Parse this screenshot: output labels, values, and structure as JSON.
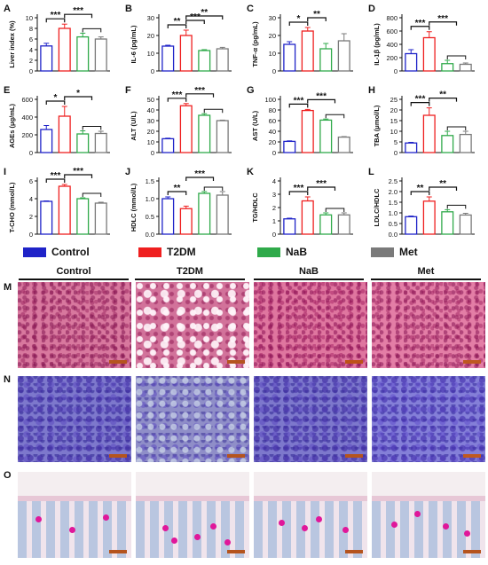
{
  "legend": {
    "items": [
      {
        "label": "Control",
        "color": "#1f23c8"
      },
      {
        "label": "T2DM",
        "color": "#ef1f1f"
      },
      {
        "label": "NaB",
        "color": "#2faa4a"
      },
      {
        "label": "Met",
        "color": "#7a7a7a"
      }
    ]
  },
  "colors": {
    "control": "#1f23c8",
    "t2dm": "#ef1f1f",
    "nab": "#2faa4a",
    "met": "#7a7a7a",
    "bar_fill": "#ffffff"
  },
  "chart_data": [
    {
      "panel": "A",
      "type": "bar",
      "ylabel": "Liver index (%)",
      "ylim": [
        0,
        10
      ],
      "yticks": [
        0,
        2,
        4,
        6,
        8,
        10
      ],
      "categories": [
        "Control",
        "T2DM",
        "NaB",
        "Met"
      ],
      "values": [
        4.7,
        8.0,
        6.4,
        6.0
      ],
      "errors": [
        0.5,
        0.8,
        0.7,
        0.4
      ],
      "significance": [
        {
          "from": 0,
          "to": 1,
          "label": "***"
        },
        {
          "from": 1,
          "to": [
            2,
            3
          ],
          "label": "***"
        }
      ]
    },
    {
      "panel": "B",
      "type": "bar",
      "ylabel": "IL-6 (pg/mL)",
      "ylim": [
        0,
        30
      ],
      "yticks": [
        0,
        10,
        20,
        30
      ],
      "categories": [
        "Control",
        "T2DM",
        "NaB",
        "Met"
      ],
      "values": [
        14,
        20,
        11.5,
        12.5
      ],
      "errors": [
        0.5,
        3,
        0.5,
        0.8
      ],
      "significance": [
        {
          "from": 0,
          "to": 1,
          "label": "**"
        },
        {
          "from": 1,
          "to": 2,
          "label": "***"
        },
        {
          "from": 1,
          "to": 3,
          "label": "**"
        }
      ]
    },
    {
      "panel": "C",
      "type": "bar",
      "ylabel": "TNF-α (pg/mL)",
      "ylim": [
        0,
        30
      ],
      "yticks": [
        0,
        10,
        20,
        30
      ],
      "categories": [
        "Control",
        "T2DM",
        "NaB",
        "Met"
      ],
      "values": [
        15,
        22.5,
        12.5,
        17
      ],
      "errors": [
        1.5,
        2,
        3,
        4
      ],
      "significance": [
        {
          "from": 0,
          "to": 1,
          "label": "*"
        },
        {
          "from": 1,
          "to": 2,
          "label": "**"
        }
      ]
    },
    {
      "panel": "D",
      "type": "bar",
      "ylabel": "IL-1β (pg/mL)",
      "ylim": [
        0,
        800
      ],
      "yticks": [
        0,
        200,
        400,
        600,
        800
      ],
      "categories": [
        "Control",
        "T2DM",
        "NaB",
        "Met"
      ],
      "values": [
        260,
        500,
        110,
        100
      ],
      "errors": [
        60,
        90,
        50,
        20
      ],
      "significance": [
        {
          "from": 0,
          "to": 1,
          "label": "***"
        },
        {
          "from": 1,
          "to": [
            2,
            3
          ],
          "label": "***"
        }
      ]
    },
    {
      "panel": "E",
      "type": "bar",
      "ylabel": "AGEs (μg/mL)",
      "ylim": [
        0,
        600
      ],
      "yticks": [
        0,
        200,
        400,
        600
      ],
      "categories": [
        "Control",
        "T2DM",
        "NaB",
        "Met"
      ],
      "values": [
        260,
        410,
        210,
        215
      ],
      "errors": [
        45,
        110,
        35,
        25
      ],
      "significance": [
        {
          "from": 0,
          "to": 1,
          "label": "*"
        },
        {
          "from": 1,
          "to": [
            2,
            3
          ],
          "label": "*"
        }
      ]
    },
    {
      "panel": "F",
      "type": "bar",
      "ylabel": "ALT (U/L)",
      "ylim": [
        0,
        50
      ],
      "yticks": [
        0,
        10,
        20,
        30,
        40,
        50
      ],
      "categories": [
        "Control",
        "T2DM",
        "NaB",
        "Met"
      ],
      "values": [
        13,
        44,
        35,
        30
      ],
      "errors": [
        0.5,
        2,
        1.5,
        0.5
      ],
      "significance": [
        {
          "from": 0,
          "to": 1,
          "label": "***"
        },
        {
          "from": 1,
          "to": [
            2,
            3
          ],
          "label": "***"
        }
      ]
    },
    {
      "panel": "G",
      "type": "bar",
      "ylabel": "AST (U/L)",
      "ylim": [
        0,
        100
      ],
      "yticks": [
        0,
        20,
        40,
        60,
        80,
        100
      ],
      "categories": [
        "Control",
        "T2DM",
        "NaB",
        "Met"
      ],
      "values": [
        21,
        79,
        61,
        29
      ],
      "errors": [
        1,
        2,
        2,
        1
      ],
      "significance": [
        {
          "from": 0,
          "to": 1,
          "label": "***"
        },
        {
          "from": 1,
          "to": [
            2,
            3
          ],
          "label": "***"
        }
      ]
    },
    {
      "panel": "H",
      "type": "bar",
      "ylabel": "TBA (μmol/L)",
      "ylim": [
        0,
        25
      ],
      "yticks": [
        0,
        5,
        10,
        15,
        20,
        25
      ],
      "categories": [
        "Control",
        "T2DM",
        "NaB",
        "Met"
      ],
      "values": [
        4.5,
        17.5,
        8,
        8.5
      ],
      "errors": [
        0.3,
        3.5,
        2,
        1.5
      ],
      "significance": [
        {
          "from": 0,
          "to": 1,
          "label": "***"
        },
        {
          "from": 1,
          "to": [
            2,
            3
          ],
          "label": "**"
        }
      ]
    },
    {
      "panel": "I",
      "type": "bar",
      "ylabel": "T-CHO (mmol/L)",
      "ylim": [
        0,
        6
      ],
      "yticks": [
        0,
        2,
        4,
        6
      ],
      "categories": [
        "Control",
        "T2DM",
        "NaB",
        "Met"
      ],
      "values": [
        3.7,
        5.4,
        4.0,
        3.5
      ],
      "errors": [
        0.05,
        0.2,
        0.1,
        0.1
      ],
      "significance": [
        {
          "from": 0,
          "to": 1,
          "label": "***"
        },
        {
          "from": 1,
          "to": [
            2,
            3
          ],
          "label": "***"
        }
      ]
    },
    {
      "panel": "J",
      "type": "bar",
      "ylabel": "HDLC (mmol/L)",
      "ylim": [
        0,
        1.5
      ],
      "yticks": [
        0.0,
        0.5,
        1.0,
        1.5
      ],
      "categories": [
        "Control",
        "T2DM",
        "NaB",
        "Met"
      ],
      "values": [
        1.0,
        0.72,
        1.15,
        1.1
      ],
      "errors": [
        0.05,
        0.07,
        0.05,
        0.1
      ],
      "significance": [
        {
          "from": 0,
          "to": 1,
          "label": "**"
        },
        {
          "from": 1,
          "to": [
            2,
            3
          ],
          "label": "***"
        }
      ]
    },
    {
      "panel": "K",
      "type": "bar",
      "ylabel": "TG/HDLC",
      "ylim": [
        0,
        4
      ],
      "yticks": [
        0,
        1,
        2,
        3,
        4
      ],
      "categories": [
        "Control",
        "T2DM",
        "NaB",
        "Met"
      ],
      "values": [
        1.15,
        2.5,
        1.45,
        1.45
      ],
      "errors": [
        0.05,
        0.3,
        0.15,
        0.15
      ],
      "significance": [
        {
          "from": 0,
          "to": 1,
          "label": "***"
        },
        {
          "from": 1,
          "to": [
            2,
            3
          ],
          "label": "***"
        }
      ]
    },
    {
      "panel": "L",
      "type": "bar",
      "ylabel": "LDLC/HDLC",
      "ylim": [
        0,
        2.5
      ],
      "yticks": [
        0.0,
        0.5,
        1.0,
        1.5,
        2.0,
        2.5
      ],
      "categories": [
        "Control",
        "T2DM",
        "NaB",
        "Met"
      ],
      "values": [
        0.82,
        1.55,
        1.05,
        0.9
      ],
      "errors": [
        0.03,
        0.2,
        0.1,
        0.08
      ],
      "significance": [
        {
          "from": 0,
          "to": 1,
          "label": "**"
        },
        {
          "from": 1,
          "to": [
            2,
            3
          ],
          "label": "**"
        }
      ]
    }
  ],
  "micrographs": {
    "columns": [
      "Control",
      "T2DM",
      "NaB",
      "Met"
    ],
    "rows": [
      {
        "letter": "M",
        "stain": "he"
      },
      {
        "letter": "N",
        "stain": "pas"
      },
      {
        "letter": "O",
        "stain": "villi"
      }
    ]
  }
}
